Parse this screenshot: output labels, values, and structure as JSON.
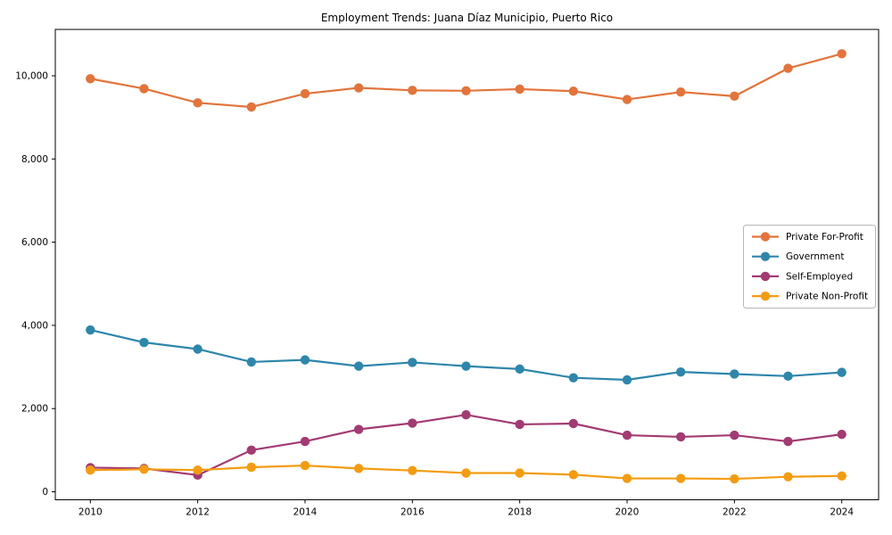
{
  "chart_data": {
    "type": "line",
    "title": "Employment Trends: Juana Díaz Municipio, Puerto Rico",
    "xlabel": "",
    "ylabel": "",
    "x": [
      2010,
      2011,
      2012,
      2013,
      2014,
      2015,
      2016,
      2017,
      2018,
      2019,
      2020,
      2021,
      2022,
      2023,
      2024
    ],
    "series": [
      {
        "name": "Private For-Profit",
        "color": "#E2743C",
        "values": [
          9930,
          9690,
          9350,
          9250,
          9570,
          9710,
          9650,
          9640,
          9680,
          9630,
          9430,
          9610,
          9510,
          10180,
          10530
        ]
      },
      {
        "name": "Government",
        "color": "#2E86AB",
        "values": [
          3890,
          3590,
          3430,
          3120,
          3170,
          3020,
          3110,
          3020,
          2950,
          2740,
          2690,
          2880,
          2830,
          2780,
          2870
        ]
      },
      {
        "name": "Self-Employed",
        "color": "#A23B72",
        "values": [
          580,
          560,
          400,
          1000,
          1210,
          1500,
          1650,
          1850,
          1620,
          1640,
          1360,
          1320,
          1360,
          1210,
          1380
        ]
      },
      {
        "name": "Private Non-Profit",
        "color": "#F39C12",
        "values": [
          520,
          540,
          520,
          590,
          630,
          560,
          510,
          450,
          450,
          410,
          320,
          320,
          310,
          360,
          380
        ]
      }
    ],
    "ylim": [
      0,
      11100
    ],
    "xlim_years": [
      2010,
      2024
    ],
    "ytick_values": [
      0,
      2000,
      4000,
      6000,
      8000,
      10000
    ],
    "ytick_labels": [
      "0",
      "2,000",
      "4,000",
      "6,000",
      "8,000",
      "10,000"
    ],
    "xtick_years": [
      2010,
      2012,
      2014,
      2016,
      2018,
      2020,
      2022,
      2024
    ],
    "xtick_labels": [
      "2010",
      "2012",
      "2014",
      "2016",
      "2018",
      "2020",
      "2022",
      "2024"
    ],
    "grid": false,
    "legend_position": "center right",
    "legend_entries": [
      "Private For-Profit",
      "Government",
      "Self-Employed",
      "Private Non-Profit"
    ],
    "axis_color": "#000000",
    "background_color": "#ffffff"
  }
}
